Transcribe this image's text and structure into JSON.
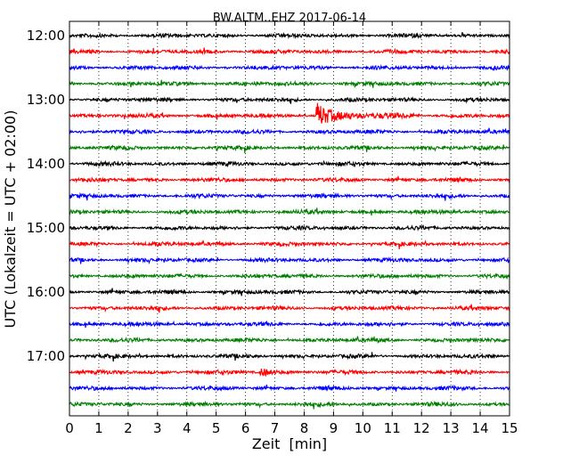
{
  "chart_data": {
    "type": "line",
    "title": "BW.ALTM..EHZ 2017-06-14",
    "xlabel": "Zeit  [min]",
    "ylabel": "UTC (Lokalzeit = UTC + 02:00)",
    "xlim": [
      0,
      15
    ],
    "x_ticks": [
      "0",
      "1",
      "2",
      "3",
      "4",
      "5",
      "6",
      "7",
      "8",
      "9",
      "10",
      "11",
      "12",
      "13",
      "14",
      "15"
    ],
    "y_ticks": [
      "12:00",
      "13:00",
      "14:00",
      "15:00",
      "16:00",
      "17:00"
    ],
    "grid": "vertical dotted",
    "trace_colors": [
      "#000000",
      "#ff0000",
      "#0000ff",
      "#008000"
    ],
    "series": [
      {
        "start": "12:00"
      },
      {
        "start": "12:15"
      },
      {
        "start": "12:30"
      },
      {
        "start": "12:45"
      },
      {
        "start": "13:00"
      },
      {
        "start": "13:15"
      },
      {
        "start": "13:30"
      },
      {
        "start": "13:45"
      },
      {
        "start": "14:00"
      },
      {
        "start": "14:15"
      },
      {
        "start": "14:30"
      },
      {
        "start": "14:45"
      },
      {
        "start": "15:00"
      },
      {
        "start": "15:15"
      },
      {
        "start": "15:30"
      },
      {
        "start": "15:45"
      },
      {
        "start": "16:00"
      },
      {
        "start": "16:15"
      },
      {
        "start": "16:30"
      },
      {
        "start": "16:45"
      },
      {
        "start": "17:00"
      },
      {
        "start": "17:15"
      },
      {
        "start": "17:30"
      },
      {
        "start": "17:45"
      }
    ],
    "events": [
      {
        "start": "13:15",
        "x_min": 8.45,
        "amplitude": "large"
      },
      {
        "start": "17:15",
        "x_min": 6.55,
        "amplitude": "small"
      }
    ]
  }
}
